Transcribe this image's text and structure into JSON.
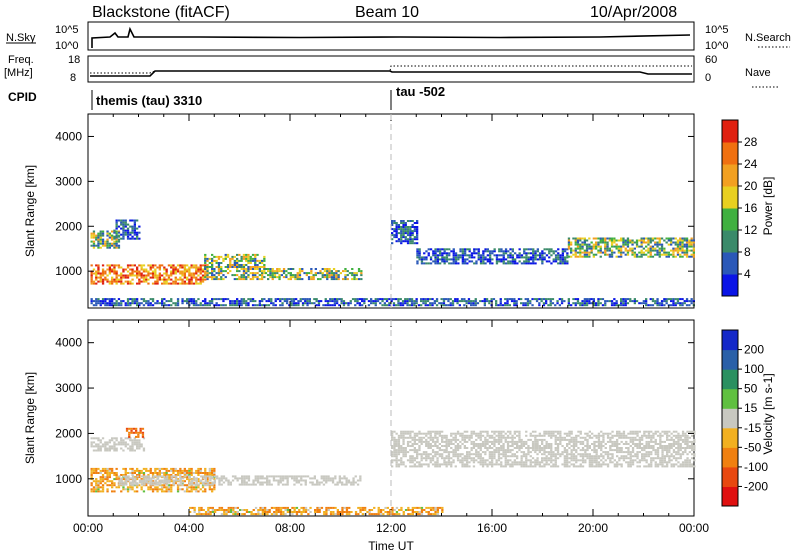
{
  "header": {
    "station": "Blackstone (fitACF)",
    "beam": "Beam 10",
    "date": "10/Apr/2008"
  },
  "top_panels": {
    "nsky_label": "N.Sky",
    "nsky_ticks": [
      "10^5",
      "10^0"
    ],
    "nsearch_label": "N.Search",
    "nsearch_ticks": [
      "10^5",
      "10^0"
    ],
    "freq_label": "Freq.",
    "freq_unit": "[MHz]",
    "freq_ticks": [
      "18",
      "8"
    ],
    "nave_label": "Nave",
    "nave_ticks": [
      "60",
      "0"
    ],
    "cpid_label": "CPID",
    "cpid_segments": [
      {
        "label": "themis (tau) 3310",
        "start_hour": 0
      },
      {
        "label": "tau -502",
        "start_hour": 12
      }
    ]
  },
  "chart_data": [
    {
      "type": "heatmap",
      "panel": "power",
      "ylabel": "Slant Range [km]",
      "xlabel": "",
      "x_range_hours": [
        0,
        24
      ],
      "ylim": [
        180,
        4500
      ],
      "yticks": [
        1000,
        2000,
        3000,
        4000
      ],
      "colorbar": {
        "label": "Power [dB]",
        "ticks": [
          4,
          8,
          12,
          16,
          20,
          24,
          28
        ],
        "bin_colors": [
          "#0a14e6",
          "#2a58b8",
          "#3a8a6a",
          "#40b040",
          "#e8d020",
          "#f2a020",
          "#f07010",
          "#e02010"
        ]
      },
      "echo_regions": [
        {
          "t0": 0.1,
          "t1": 1.2,
          "r0": 1500,
          "r1": 1900,
          "level": "med"
        },
        {
          "t0": 1.0,
          "t1": 2.0,
          "r0": 1700,
          "r1": 2150,
          "level": "low"
        },
        {
          "t0": 0.1,
          "t1": 4.6,
          "r0": 700,
          "r1": 1150,
          "level": "high"
        },
        {
          "t0": 4.6,
          "t1": 7.0,
          "r0": 800,
          "r1": 1350,
          "level": "med"
        },
        {
          "t0": 7.0,
          "t1": 10.8,
          "r0": 800,
          "r1": 1050,
          "level": "med"
        },
        {
          "t0": 12.0,
          "t1": 13.0,
          "r0": 1600,
          "r1": 2100,
          "level": "low"
        },
        {
          "t0": 13.0,
          "t1": 19.0,
          "r0": 1150,
          "r1": 1500,
          "level": "low"
        },
        {
          "t0": 19.0,
          "t1": 24.0,
          "r0": 1300,
          "r1": 1750,
          "level": "med"
        },
        {
          "t0": 0.1,
          "t1": 24.0,
          "r0": 220,
          "r1": 360,
          "level": "low"
        }
      ]
    },
    {
      "type": "heatmap",
      "panel": "velocity",
      "ylabel": "Slant Range [km]",
      "xlabel": "Time UT",
      "x_range_hours": [
        0,
        24
      ],
      "ylim": [
        180,
        4500
      ],
      "yticks": [
        1000,
        2000,
        3000,
        4000
      ],
      "xtick_labels": [
        "00:00",
        "04:00",
        "08:00",
        "12:00",
        "16:00",
        "20:00",
        "00:00"
      ],
      "colorbar": {
        "label": "Velocity [m s-1]",
        "ticks": [
          200,
          100,
          50,
          15,
          -15,
          -50,
          -100,
          -200
        ],
        "bin_colors": [
          "#1428c8",
          "#2a60a8",
          "#2a9060",
          "#60c040",
          "#c8c8c0",
          "#f2b020",
          "#f08010",
          "#e84810",
          "#e01010"
        ]
      },
      "echo_regions": [
        {
          "t0": 0.1,
          "t1": 2.2,
          "r0": 1600,
          "r1": 1900,
          "level": "gs"
        },
        {
          "t0": 1.5,
          "t1": 2.2,
          "r0": 1900,
          "r1": 2100,
          "level": "neg_strong"
        },
        {
          "t0": 0.1,
          "t1": 5.0,
          "r0": 700,
          "r1": 1200,
          "level": "neg"
        },
        {
          "t0": 1.2,
          "t1": 10.8,
          "r0": 850,
          "r1": 1050,
          "level": "gs"
        },
        {
          "t0": 12.0,
          "t1": 24.0,
          "r0": 1250,
          "r1": 2050,
          "level": "gs"
        },
        {
          "t0": 4.0,
          "t1": 14.0,
          "r0": 200,
          "r1": 350,
          "level": "neg"
        }
      ]
    }
  ]
}
